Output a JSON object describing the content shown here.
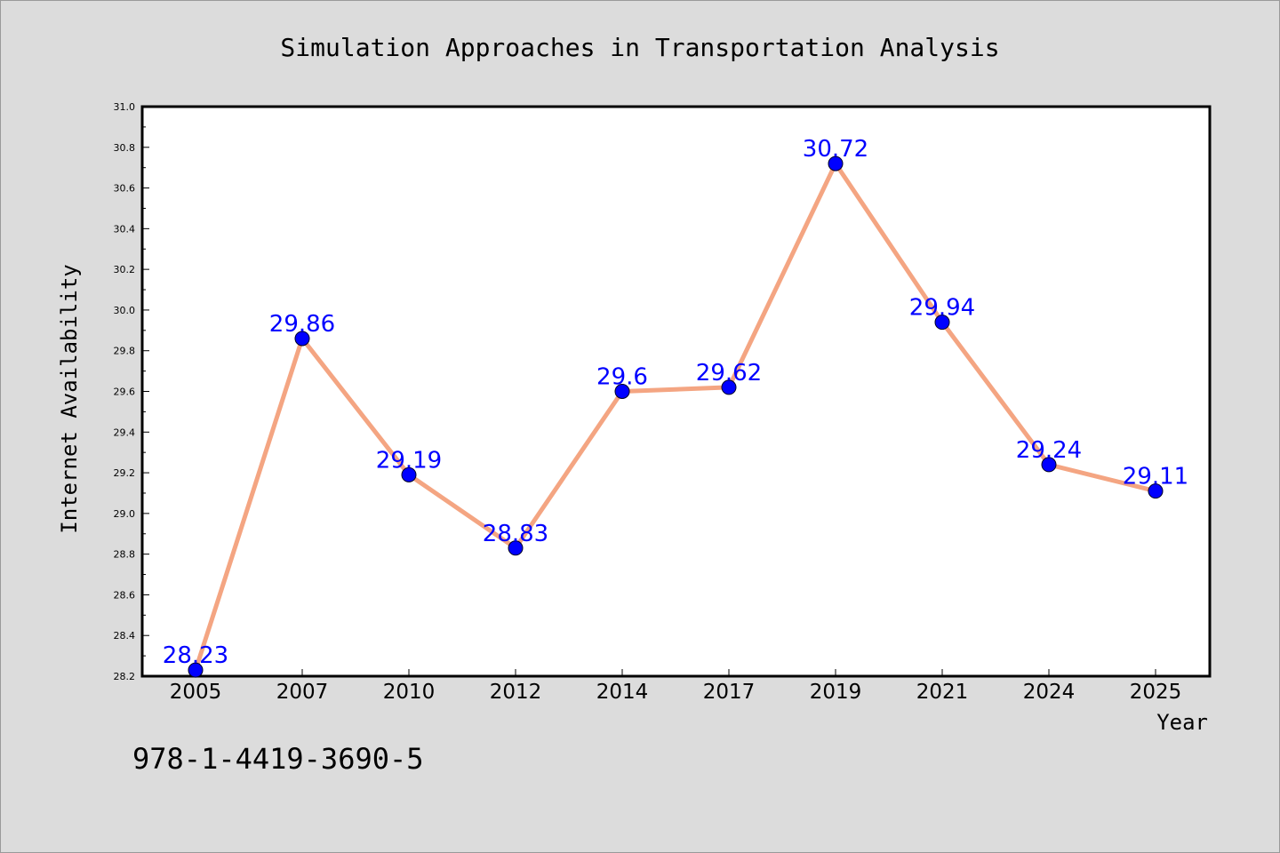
{
  "chart_data": {
    "type": "line",
    "title": "Simulation Approaches in Transportation Analysis",
    "xlabel": "Year",
    "ylabel": "Internet Availability",
    "categories": [
      "2005",
      "2007",
      "2010",
      "2012",
      "2014",
      "2017",
      "2019",
      "2021",
      "2024",
      "2025"
    ],
    "series": [
      {
        "values": [
          28.23,
          29.86,
          29.19,
          28.83,
          29.6,
          29.62,
          30.72,
          29.94,
          29.24,
          29.11
        ],
        "labels": [
          "28.23",
          "29.86",
          "29.19",
          "28.83",
          "29.6",
          "29.62",
          "30.72",
          "29.94",
          "29.24",
          "29.11"
        ]
      }
    ],
    "ylim": [
      28.2,
      31.0
    ],
    "yticks": [
      "28.2",
      "28.4",
      "28.6",
      "28.8",
      "29.0",
      "29.2",
      "29.4",
      "29.6",
      "29.8",
      "30.0",
      "30.2",
      "30.4",
      "30.6",
      "30.8",
      "31.0"
    ],
    "grid": false,
    "legend": "none"
  },
  "annotation": "978-1-4419-3690-5",
  "colors": {
    "background": "#dcdcdc",
    "plot_background": "#ffffff",
    "line": "#f4a582",
    "marker": "#0000ff",
    "data_label": "#0000ff",
    "text": "#000000"
  }
}
